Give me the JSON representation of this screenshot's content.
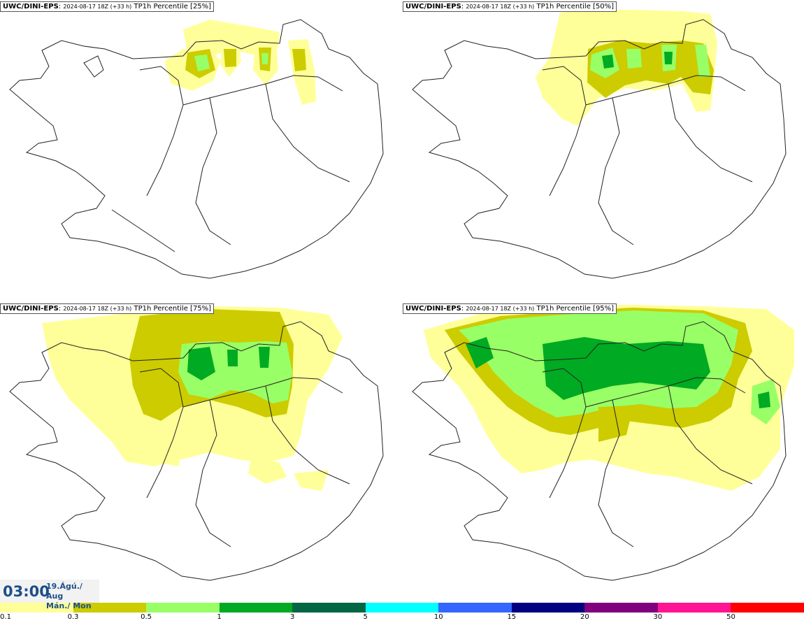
{
  "panels": [
    {
      "model": "UWC/DINI-EPS",
      "run": "2024-08-17 18Z (+33 h)",
      "field": "TP1h Percentile",
      "percentile": "[25%]"
    },
    {
      "model": "UWC/DINI-EPS",
      "run": "2024-08-17 18Z (+33 h)",
      "field": "TP1h Percentile",
      "percentile": "[50%]"
    },
    {
      "model": "UWC/DINI-EPS",
      "run": "2024-08-17 18Z (+33 h)",
      "field": "TP1h Percentile",
      "percentile": "[75%]"
    },
    {
      "model": "UWC/DINI-EPS",
      "run": "2024-08-17 18Z (+33 h)",
      "field": "TP1h Percentile",
      "percentile": "[95%]"
    }
  ],
  "valid_time": {
    "time": "03:00",
    "date_line1": "19.Ágú./ Aug",
    "date_line2": "Mán./ Mon"
  },
  "legend": {
    "colors": [
      "#ffff99",
      "#cccc00",
      "#99ff66",
      "#00aa22",
      "#006644",
      "#00ffff",
      "#3366ff",
      "#000080",
      "#800080",
      "#ff1493",
      "#ff0000"
    ],
    "labels": [
      "0.1",
      "0.3",
      "0.5",
      "1",
      "3",
      "5",
      "10",
      "15",
      "20",
      "30",
      "50"
    ]
  }
}
